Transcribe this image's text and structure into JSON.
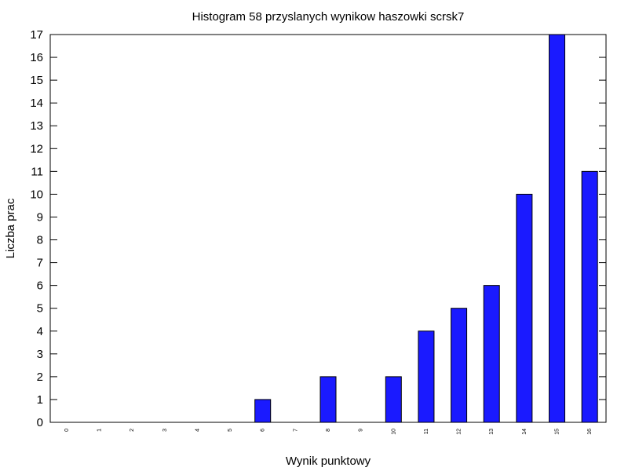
{
  "chart_data": {
    "type": "bar",
    "title": "Histogram 58 przyslanych wynikow haszowki scrsk7",
    "xlabel": "Wynik punktowy",
    "ylabel": "Liczba prac",
    "categories": [
      "0",
      "1",
      "2",
      "3",
      "4",
      "5",
      "6",
      "7",
      "8",
      "9",
      "10",
      "11",
      "12",
      "13",
      "14",
      "15",
      "16"
    ],
    "values": [
      0,
      0,
      0,
      0,
      0,
      0,
      1,
      0,
      2,
      0,
      2,
      4,
      5,
      6,
      10,
      17,
      11
    ],
    "ylim": [
      0,
      17
    ],
    "yticks": [
      0,
      1,
      2,
      3,
      4,
      5,
      6,
      7,
      8,
      9,
      10,
      11,
      12,
      13,
      14,
      15,
      16,
      17
    ],
    "grid": false,
    "legend": "none",
    "colors": {
      "bar_fill": "#1a1aff",
      "bar_stroke": "#000000",
      "axis": "#000000",
      "background": "#ffffff"
    }
  }
}
